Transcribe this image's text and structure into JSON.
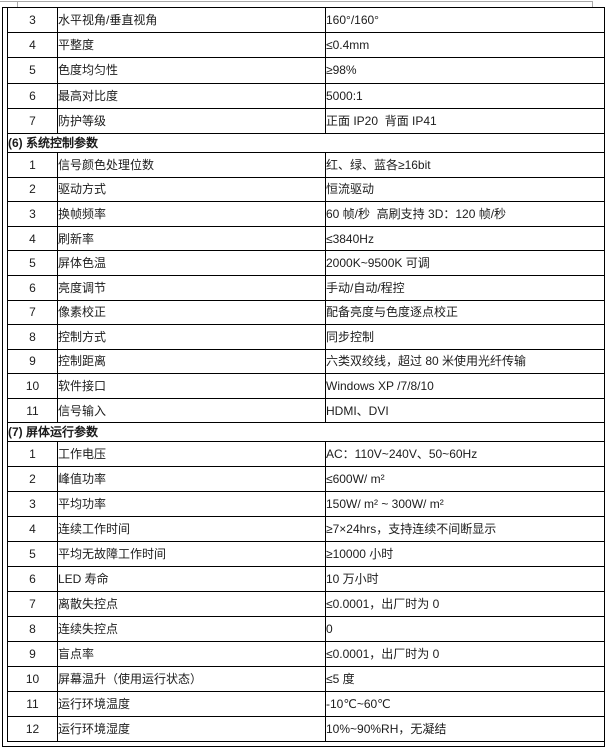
{
  "palette": {
    "border": "#000000",
    "text": "#1c1c1c",
    "fragment_gray": "#a9a9a9",
    "background": "#ffffff"
  },
  "document_table": {
    "sections": [
      {
        "header": null,
        "rows": [
          {
            "num": "3",
            "name": "水平视角/垂直视角",
            "value": "160°/160°"
          },
          {
            "num": "4",
            "name": "平整度",
            "value": "≤0.4mm"
          },
          {
            "num": "5",
            "name": "色度均匀性",
            "value": "≥98%"
          },
          {
            "num": "6",
            "name": "最高对比度",
            "value": "5000:1"
          },
          {
            "num": "7",
            "name": "防护等级",
            "value": "正面 IP20  背面 IP41"
          }
        ]
      },
      {
        "header": "(6) 系统控制参数",
        "rows": [
          {
            "num": "1",
            "name": "信号颜色处理位数",
            "value": "红、绿、蓝各≥16bit"
          },
          {
            "num": "2",
            "name": "驱动方式",
            "value": "恒流驱动"
          },
          {
            "num": "3",
            "name": "换帧频率",
            "value": "60 帧/秒  高刷支持 3D：120 帧/秒"
          },
          {
            "num": "4",
            "name": "刷新率",
            "value": "≤3840Hz"
          },
          {
            "num": "5",
            "name": "屏体色温",
            "value": "2000K~9500K 可调"
          },
          {
            "num": "6",
            "name": "亮度调节",
            "value": "手动/自动/程控"
          },
          {
            "num": "7",
            "name": "像素校正",
            "value": "配备亮度与色度逐点校正"
          },
          {
            "num": "8",
            "name": "控制方式",
            "value": "同步控制"
          },
          {
            "num": "9",
            "name": "控制距离",
            "value": "六类双绞线，超过 80 米使用光纤传输"
          },
          {
            "num": "10",
            "name": "软件接口",
            "value": "Windows XP /7/8/10"
          },
          {
            "num": "11",
            "name": "信号输入",
            "value": "HDMI、DVI"
          }
        ]
      },
      {
        "header": "(7) 屏体运行参数",
        "rows": [
          {
            "num": "1",
            "name": "工作电压",
            "value": "AC：110V~240V、50~60Hz"
          },
          {
            "num": "2",
            "name": "峰值功率",
            "value": "≤600W/ m²"
          },
          {
            "num": "3",
            "name": "平均功率",
            "value": "150W/ m² ~ 300W/ m²"
          },
          {
            "num": "4",
            "name": "连续工作时间",
            "value": "≥7×24hrs，支持连续不间断显示"
          },
          {
            "num": "5",
            "name": "平均无故障工作时间",
            "value": "≥10000 小时"
          },
          {
            "num": "6",
            "name": "LED 寿命",
            "value": "10 万小时"
          },
          {
            "num": "7",
            "name": "离散失控点",
            "value": "≤0.0001，出厂时为 0"
          },
          {
            "num": "8",
            "name": "连续失控点",
            "value": "0"
          },
          {
            "num": "9",
            "name": "盲点率",
            "value": "≤0.0001，出厂时为 0"
          },
          {
            "num": "10",
            "name": "屏幕温升（使用运行状态）",
            "value": "≤5 度"
          },
          {
            "num": "11",
            "name": "运行环境温度",
            "value": "-10℃~60℃"
          },
          {
            "num": "12",
            "name": "运行环境湿度",
            "value": "10%~90%RH，无凝结"
          }
        ]
      }
    ]
  }
}
